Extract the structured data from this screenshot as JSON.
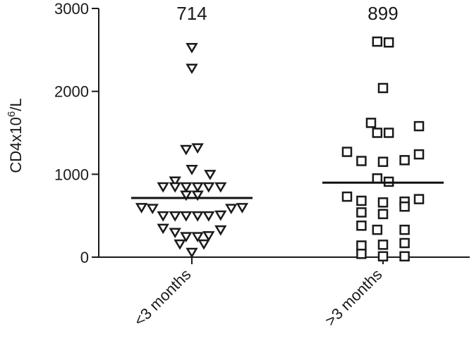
{
  "chart_data": {
    "type": "scatter",
    "title": "",
    "ylabel": {
      "prefix": "CD4x10",
      "superscript": "6",
      "suffix": "/L"
    },
    "xlabel": "",
    "ylim": [
      0,
      3000
    ],
    "yticks": [
      0,
      1000,
      2000,
      3000
    ],
    "categories": [
      "<3 months",
      ">3 months"
    ],
    "grid": false,
    "series": [
      {
        "category": "<3 months",
        "marker": "triangle-down",
        "median": 714,
        "median_label": "714",
        "points": [
          {
            "dx": 0,
            "y": 2530
          },
          {
            "dx": 0,
            "y": 2280
          },
          {
            "dx": -0.12,
            "y": 1300
          },
          {
            "dx": 0.12,
            "y": 1320
          },
          {
            "dx": 0,
            "y": 1060
          },
          {
            "dx": 0.38,
            "y": 1000
          },
          {
            "dx": -0.35,
            "y": 920
          },
          {
            "dx": -0.6,
            "y": 850
          },
          {
            "dx": -0.35,
            "y": 850
          },
          {
            "dx": -0.12,
            "y": 850
          },
          {
            "dx": 0.12,
            "y": 850
          },
          {
            "dx": 0.35,
            "y": 850
          },
          {
            "dx": 0.6,
            "y": 850
          },
          {
            "dx": -0.12,
            "y": 750
          },
          {
            "dx": 0.12,
            "y": 750
          },
          {
            "dx": -1.05,
            "y": 600
          },
          {
            "dx": -0.82,
            "y": 590
          },
          {
            "dx": 0.82,
            "y": 590
          },
          {
            "dx": 1.05,
            "y": 600
          },
          {
            "dx": -0.6,
            "y": 500
          },
          {
            "dx": -0.35,
            "y": 500
          },
          {
            "dx": -0.12,
            "y": 500
          },
          {
            "dx": 0.12,
            "y": 500
          },
          {
            "dx": 0.35,
            "y": 500
          },
          {
            "dx": 0.6,
            "y": 510
          },
          {
            "dx": -0.6,
            "y": 350
          },
          {
            "dx": -0.35,
            "y": 300
          },
          {
            "dx": 0.6,
            "y": 330
          },
          {
            "dx": -0.12,
            "y": 250
          },
          {
            "dx": 0.12,
            "y": 250
          },
          {
            "dx": 0.35,
            "y": 260
          },
          {
            "dx": -0.25,
            "y": 160
          },
          {
            "dx": 0.25,
            "y": 160
          },
          {
            "dx": 0,
            "y": 60
          }
        ]
      },
      {
        "category": ">3 months",
        "marker": "square",
        "median": 899,
        "median_label": "899",
        "points": [
          {
            "dx": -0.12,
            "y": 2600
          },
          {
            "dx": 0.12,
            "y": 2590
          },
          {
            "dx": 0,
            "y": 2040
          },
          {
            "dx": -0.25,
            "y": 1620
          },
          {
            "dx": 0.75,
            "y": 1580
          },
          {
            "dx": -0.12,
            "y": 1500
          },
          {
            "dx": 0.12,
            "y": 1500
          },
          {
            "dx": -0.75,
            "y": 1270
          },
          {
            "dx": 0.75,
            "y": 1240
          },
          {
            "dx": -0.45,
            "y": 1160
          },
          {
            "dx": 0,
            "y": 1150
          },
          {
            "dx": 0.45,
            "y": 1170
          },
          {
            "dx": -0.12,
            "y": 950
          },
          {
            "dx": 0.12,
            "y": 910
          },
          {
            "dx": -0.75,
            "y": 730
          },
          {
            "dx": -0.45,
            "y": 680
          },
          {
            "dx": 0,
            "y": 660
          },
          {
            "dx": 0.45,
            "y": 670
          },
          {
            "dx": 0.75,
            "y": 700
          },
          {
            "dx": 0.45,
            "y": 610
          },
          {
            "dx": -0.45,
            "y": 540
          },
          {
            "dx": 0,
            "y": 520
          },
          {
            "dx": -0.45,
            "y": 380
          },
          {
            "dx": -0.12,
            "y": 330
          },
          {
            "dx": 0.45,
            "y": 330
          },
          {
            "dx": -0.45,
            "y": 140
          },
          {
            "dx": 0,
            "y": 150
          },
          {
            "dx": 0.45,
            "y": 170
          },
          {
            "dx": -0.45,
            "y": 40
          },
          {
            "dx": 0,
            "y": 10
          },
          {
            "dx": 0.45,
            "y": 10
          }
        ]
      }
    ]
  }
}
